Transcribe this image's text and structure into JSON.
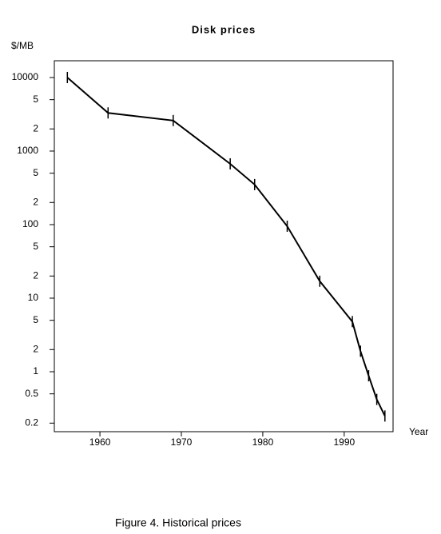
{
  "chart_data": {
    "type": "line",
    "title": "Disk prices",
    "y_label": "$/MB",
    "x_label": "Year",
    "caption": "Figure 4.  Historical prices",
    "log_y": true,
    "grid": false,
    "x": [
      1956,
      1961,
      1969,
      1976,
      1979,
      1983,
      1987,
      1991,
      1992,
      1993,
      1994,
      1995
    ],
    "series": [
      {
        "name": "$/MB",
        "color": "#000000",
        "values": [
          10000,
          3300,
          2600,
          670,
          350,
          95,
          17,
          4.8,
          1.9,
          0.88,
          0.42,
          0.25
        ]
      }
    ],
    "xlim": [
      1954.4,
      1996
    ],
    "xticks": [
      1960,
      1970,
      1980,
      1990
    ],
    "ylim": [
      0.153,
      16900
    ],
    "yticks": [
      {
        "value": 10000,
        "label": "10000"
      },
      {
        "value": 5000,
        "label": "5"
      },
      {
        "value": 2000,
        "label": "2"
      },
      {
        "value": 1000,
        "label": "1000"
      },
      {
        "value": 500,
        "label": "5"
      },
      {
        "value": 200,
        "label": "2"
      },
      100,
      {
        "value": 50,
        "label": "5"
      },
      {
        "value": 20,
        "label": "2"
      },
      10,
      5,
      2,
      1,
      0.5,
      0.2
    ]
  }
}
